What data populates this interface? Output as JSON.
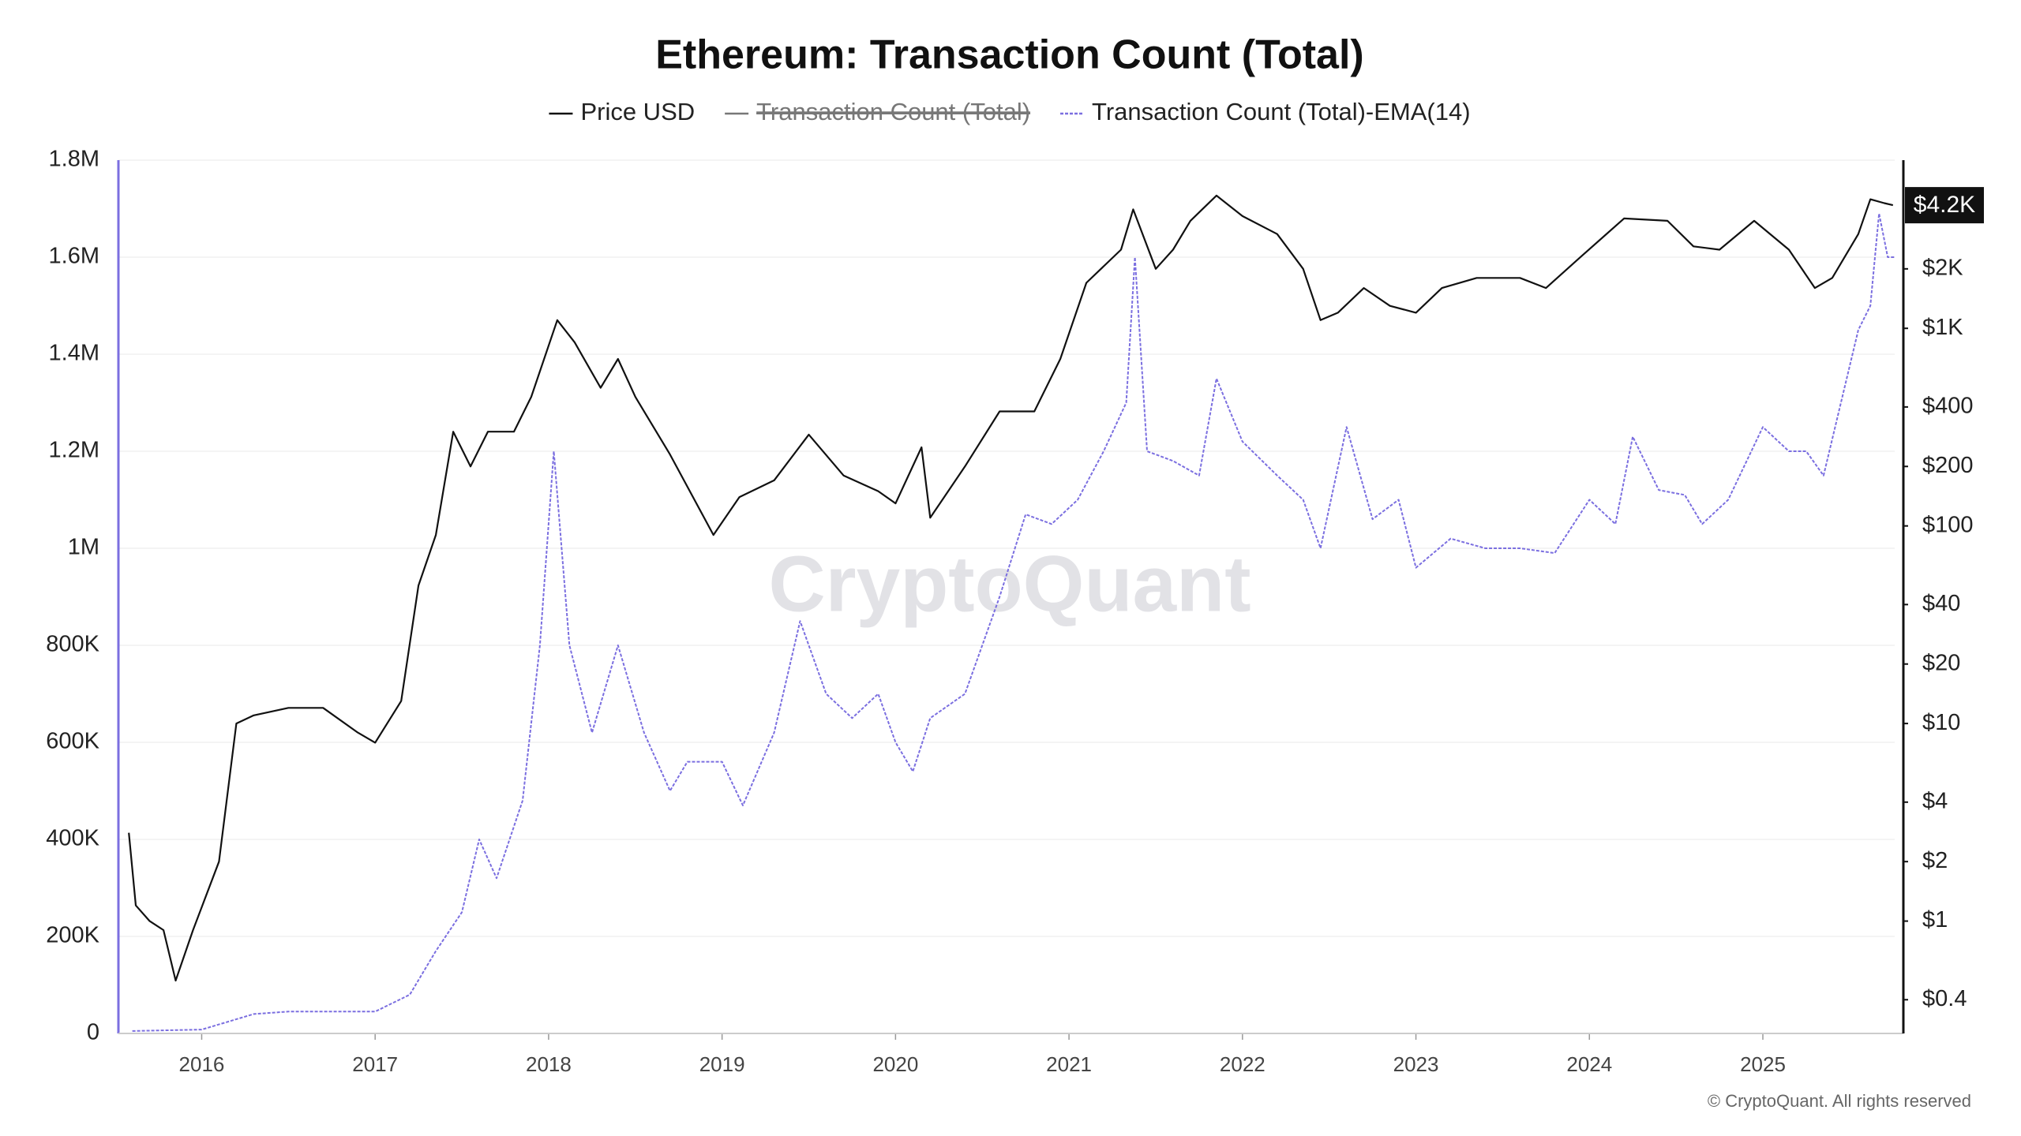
{
  "chart_data": {
    "type": "line",
    "title": "Ethereum: Transaction Count (Total)",
    "watermark": "CryptoQuant",
    "footer": "© CryptoQuant. All rights reserved",
    "xlim": [
      2015.52,
      2025.76
    ],
    "xticks": [
      2016,
      2017,
      2018,
      2019,
      2020,
      2021,
      2022,
      2023,
      2024,
      2025
    ],
    "ylim": [
      0,
      1800000
    ],
    "yticks": [
      0,
      {
        "value": 200000,
        "label": "200K"
      },
      {
        "value": 400000,
        "label": "400K"
      },
      {
        "value": 600000,
        "label": "600K"
      },
      {
        "value": 800000,
        "label": "800K"
      },
      {
        "value": 1000000,
        "label": "1M"
      },
      {
        "value": 1200000,
        "label": "1.2M"
      },
      {
        "value": 1400000,
        "label": "1.4M"
      },
      {
        "value": 1600000,
        "label": "1.6M"
      },
      {
        "value": 1800000,
        "label": "1.8M"
      }
    ],
    "y2lim": [
      0.27,
      7100
    ],
    "y2scale": "log",
    "y2ticks": [
      {
        "value": 0.4,
        "label": "$0.4"
      },
      {
        "value": 1,
        "label": "$1"
      },
      {
        "value": 2,
        "label": "$2"
      },
      {
        "value": 4,
        "label": "$4"
      },
      {
        "value": 10,
        "label": "$10"
      },
      {
        "value": 20,
        "label": "$20"
      },
      {
        "value": 40,
        "label": "$40"
      },
      {
        "value": 100,
        "label": "$100"
      },
      {
        "value": 200,
        "label": "$200"
      },
      {
        "value": 400,
        "label": "$400"
      },
      {
        "value": 1000,
        "label": "$1K"
      },
      {
        "value": 2000,
        "label": "$2K"
      }
    ],
    "current_price": {
      "value": 4200,
      "label": "$4.2K"
    },
    "grid": true,
    "legend": "top",
    "hidden_series": [
      {
        "name": "Transaction Count (Total)",
        "color": "#777777"
      }
    ],
    "series": [
      {
        "name": "Price USD",
        "color": "#111111",
        "axis": "y2",
        "style": "solid",
        "x": [
          2015.58,
          2015.62,
          2015.7,
          2015.78,
          2015.85,
          2015.95,
          2016.1,
          2016.2,
          2016.3,
          2016.5,
          2016.7,
          2016.9,
          2017.0,
          2017.15,
          2017.25,
          2017.35,
          2017.45,
          2017.55,
          2017.65,
          2017.8,
          2017.9,
          2018.05,
          2018.15,
          2018.3,
          2018.4,
          2018.5,
          2018.7,
          2018.95,
          2019.1,
          2019.3,
          2019.5,
          2019.7,
          2019.9,
          2020.0,
          2020.15,
          2020.2,
          2020.4,
          2020.6,
          2020.8,
          2020.95,
          2021.1,
          2021.3,
          2021.37,
          2021.5,
          2021.6,
          2021.7,
          2021.85,
          2022.0,
          2022.2,
          2022.35,
          2022.45,
          2022.55,
          2022.7,
          2022.85,
          2023.0,
          2023.15,
          2023.35,
          2023.6,
          2023.75,
          2023.95,
          2024.2,
          2024.45,
          2024.6,
          2024.75,
          2024.95,
          2025.15,
          2025.3,
          2025.4,
          2025.55,
          2025.62,
          2025.7,
          2025.75
        ],
        "values": [
          2.8,
          1.2,
          1.0,
          0.9,
          0.5,
          0.9,
          2.0,
          10,
          11,
          12,
          12,
          9,
          8,
          13,
          50,
          90,
          300,
          200,
          300,
          300,
          450,
          1100,
          850,
          500,
          700,
          450,
          230,
          90,
          140,
          170,
          290,
          180,
          150,
          130,
          250,
          110,
          200,
          380,
          380,
          700,
          1700,
          2500,
          4000,
          2000,
          2500,
          3500,
          4700,
          3700,
          3000,
          2000,
          1100,
          1200,
          1600,
          1300,
          1200,
          1600,
          1800,
          1800,
          1600,
          2300,
          3600,
          3500,
          2600,
          2500,
          3500,
          2500,
          1600,
          1800,
          3000,
          4500,
          4300,
          4200
        ]
      },
      {
        "name": "Transaction Count (Total)-EMA(14)",
        "color": "#7b6fe0",
        "axis": "y",
        "style": "dashed",
        "x": [
          2015.6,
          2016.0,
          2016.3,
          2016.5,
          2017.0,
          2017.2,
          2017.35,
          2017.5,
          2017.6,
          2017.7,
          2017.85,
          2017.95,
          2018.03,
          2018.12,
          2018.25,
          2018.4,
          2018.55,
          2018.7,
          2018.8,
          2019.0,
          2019.12,
          2019.3,
          2019.45,
          2019.6,
          2019.75,
          2019.9,
          2020.0,
          2020.1,
          2020.2,
          2020.4,
          2020.6,
          2020.75,
          2020.9,
          2021.05,
          2021.2,
          2021.33,
          2021.38,
          2021.45,
          2021.6,
          2021.75,
          2021.85,
          2022.0,
          2022.2,
          2022.35,
          2022.45,
          2022.6,
          2022.75,
          2022.9,
          2023.0,
          2023.2,
          2023.4,
          2023.6,
          2023.8,
          2024.0,
          2024.15,
          2024.25,
          2024.4,
          2024.55,
          2024.65,
          2024.8,
          2025.0,
          2025.15,
          2025.25,
          2025.35,
          2025.45,
          2025.55,
          2025.62,
          2025.67,
          2025.72,
          2025.76
        ],
        "values": [
          5000,
          8000,
          40000,
          45000,
          45000,
          80000,
          170000,
          250000,
          400000,
          320000,
          480000,
          800000,
          1200000,
          800000,
          620000,
          800000,
          620000,
          500000,
          560000,
          560000,
          470000,
          620000,
          850000,
          700000,
          650000,
          700000,
          600000,
          540000,
          650000,
          700000,
          900000,
          1070000,
          1050000,
          1100000,
          1200000,
          1300000,
          1600000,
          1200000,
          1180000,
          1150000,
          1350000,
          1220000,
          1150000,
          1100000,
          1000000,
          1250000,
          1060000,
          1100000,
          960000,
          1020000,
          1000000,
          1000000,
          990000,
          1100000,
          1050000,
          1230000,
          1120000,
          1110000,
          1050000,
          1100000,
          1250000,
          1200000,
          1200000,
          1150000,
          1300000,
          1450000,
          1500000,
          1690000,
          1600000,
          1600000
        ]
      }
    ]
  }
}
